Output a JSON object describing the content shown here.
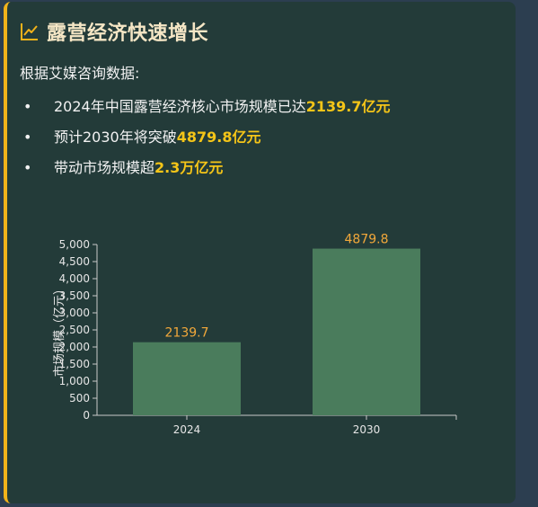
{
  "card": {
    "accent_color": "#f2b21a",
    "title": "露营经济快速增长",
    "title_icon": "line-chart-icon",
    "intro": "根据艾媒咨询数据:",
    "bullets": [
      {
        "marker": "•",
        "text": "2024年中国露营经济核心市场规模已达",
        "highlight": "2139.7亿元"
      },
      {
        "marker": "•",
        "text": "预计2030年将突破",
        "highlight": "4879.8亿元"
      },
      {
        "marker": "•",
        "text": "带动市场规模超",
        "highlight": "2.3万亿元"
      }
    ],
    "highlight_color": "#f5c518"
  },
  "chart_data": {
    "type": "bar",
    "categories": [
      "2024",
      "2030"
    ],
    "values": [
      2139.7,
      4879.8
    ],
    "data_labels": [
      "2139.7",
      "4879.8"
    ],
    "title": "",
    "xlabel": "",
    "ylabel": "市场规模（亿元）",
    "ylim": [
      0,
      5000
    ],
    "yticks": [
      "0",
      "500",
      "1,000",
      "1,500",
      "2,000",
      "2,500",
      "3,000",
      "3,500",
      "4,000",
      "4,500",
      "5,000"
    ],
    "bar_color": "#4a7c5c",
    "label_color": "#f2a83a",
    "grid": false
  }
}
